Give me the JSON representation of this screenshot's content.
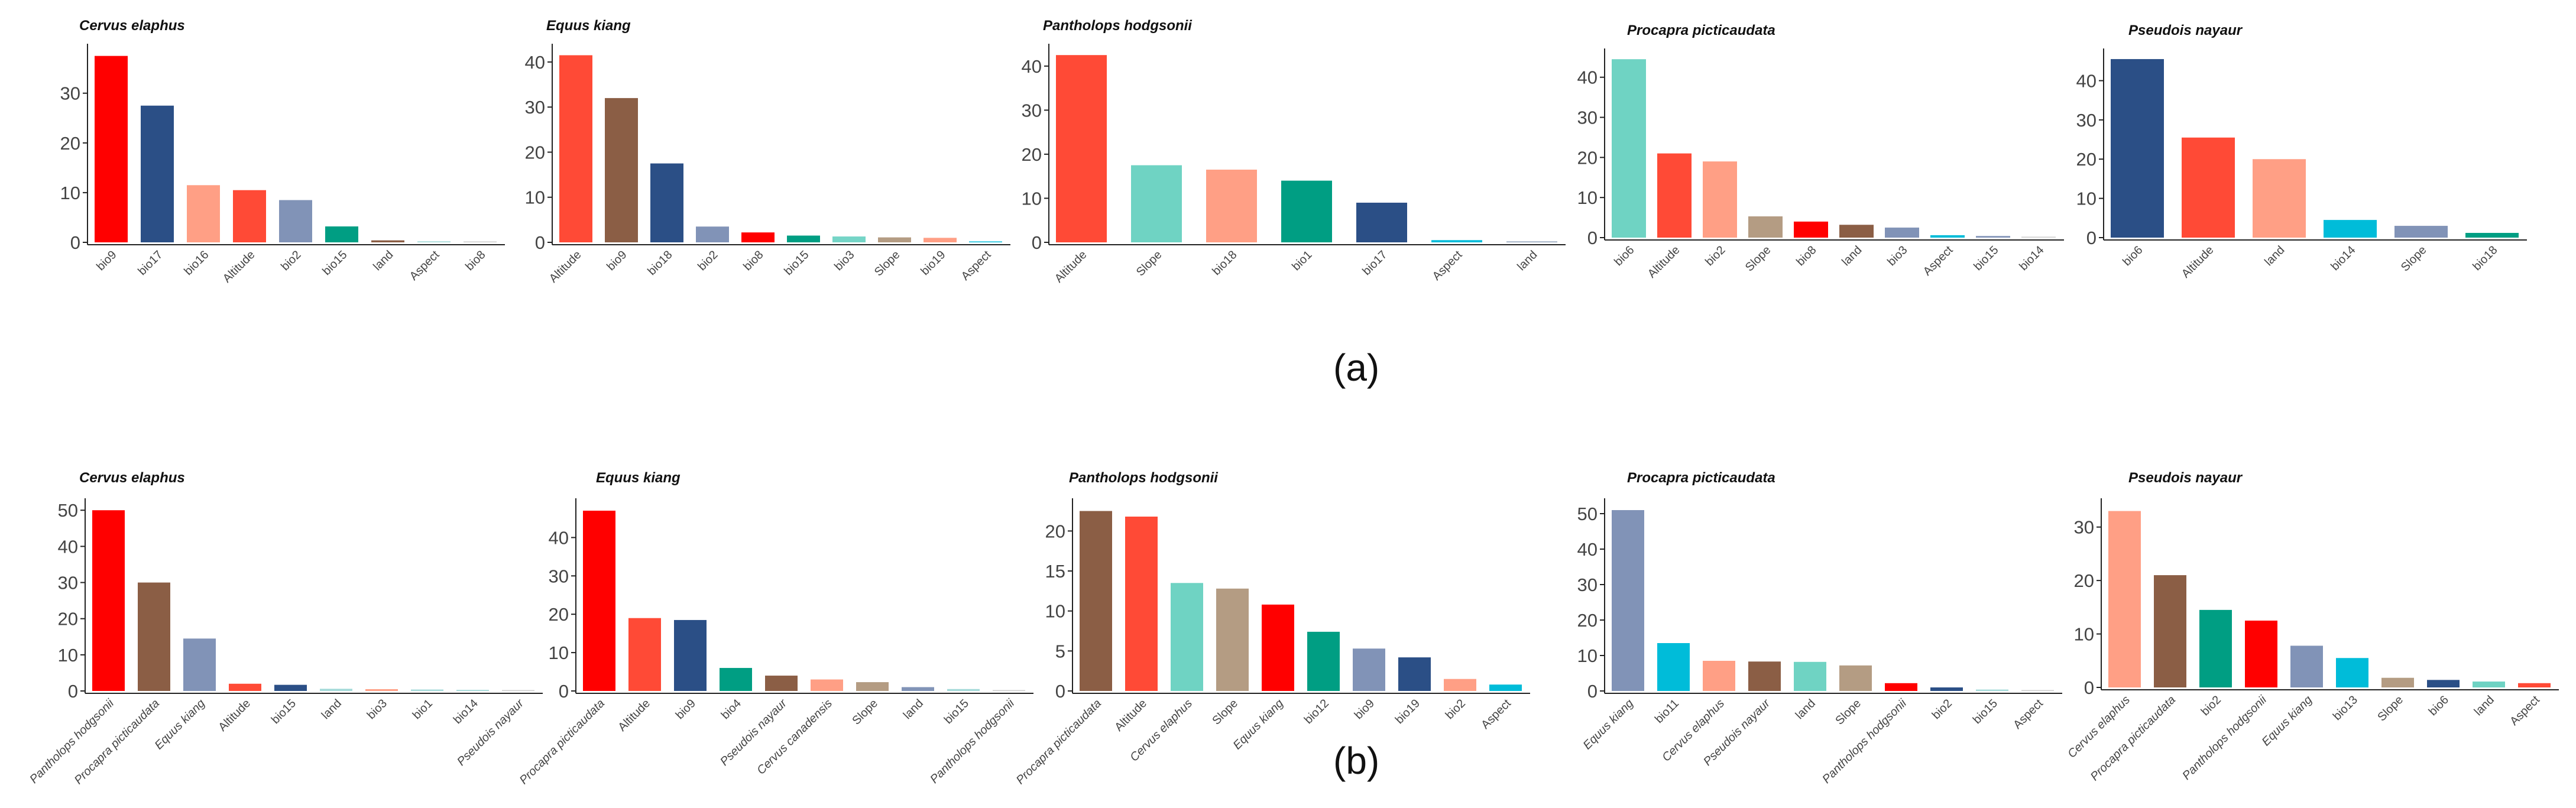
{
  "figure": {
    "captions": [
      "(a)",
      "(b)"
    ]
  },
  "chart_data": [
    {
      "type": "bar",
      "row": "a",
      "title": "Cervus elaphus",
      "categories": [
        "bio9",
        "bio17",
        "bio16",
        "Altitude",
        "bio2",
        "bio15",
        "land",
        "Aspect",
        "bio8"
      ],
      "values": [
        37.5,
        27.5,
        11.5,
        10.5,
        8.5,
        3.2,
        0.4,
        0.2,
        0.1
      ],
      "colors": [
        "#ff0000",
        "#2b4f86",
        "#ff9f85",
        "#ff4a36",
        "#8193b7",
        "#009e83",
        "#8b5e45",
        "#a2d9d8",
        "#cccccc"
      ],
      "ylim": [
        0,
        39
      ],
      "yticks": [
        0,
        10,
        20,
        30
      ]
    },
    {
      "type": "bar",
      "row": "a",
      "title": "Equus kiang",
      "categories": [
        "Altitude",
        "bio9",
        "bio18",
        "bio2",
        "bio8",
        "bio15",
        "bio3",
        "Slope",
        "bio19",
        "Aspect"
      ],
      "values": [
        41.5,
        32,
        17.5,
        3.5,
        2.2,
        1.5,
        1.3,
        1.1,
        1,
        0.1
      ],
      "colors": [
        "#ff4a36",
        "#8b5e45",
        "#2b4f86",
        "#8193b7",
        "#ff0000",
        "#009e83",
        "#75d5c7",
        "#b49c83",
        "#ff9f85",
        "#00bcd9"
      ],
      "ylim": [
        0,
        43
      ],
      "yticks": [
        0,
        10,
        20,
        30,
        40
      ]
    },
    {
      "type": "bar",
      "row": "a",
      "title": "Pantholops hodgsonii",
      "categories": [
        "Altitude",
        "Slope",
        "bio18",
        "bio1",
        "bio17",
        "Aspect",
        "land"
      ],
      "values": [
        42.5,
        17.5,
        16.5,
        14,
        9,
        0.5,
        0.2
      ],
      "colors": [
        "#ff4a36",
        "#6fd3c3",
        "#ff9f85",
        "#009e83",
        "#2b4f86",
        "#00bcd9",
        "#8b9eb7"
      ],
      "ylim": [
        0,
        44
      ],
      "yticks": [
        0,
        10,
        20,
        30,
        40
      ]
    },
    {
      "type": "bar",
      "row": "a",
      "title": "Procapra picticaudata",
      "categories": [
        "bio6",
        "Altitude",
        "bio2",
        "Slope",
        "bio8",
        "land",
        "bio3",
        "Aspect",
        "bio15",
        "bio14"
      ],
      "values": [
        44.5,
        21,
        19,
        5.3,
        4,
        3.2,
        2.5,
        0.6,
        0.4,
        0.1
      ],
      "colors": [
        "#6fd3c3",
        "#ff4a36",
        "#ff9f85",
        "#b49c83",
        "#ff0000",
        "#8b5e45",
        "#8193b7",
        "#00bcd9",
        "#8193b7",
        "#cccccc"
      ],
      "ylim": [
        0,
        46
      ],
      "yticks": [
        0,
        10,
        20,
        30,
        40
      ]
    },
    {
      "type": "bar",
      "row": "a",
      "title": "Pseudois nayaur",
      "categories": [
        "bio6",
        "Altitude",
        "land",
        "bio14",
        "Slope",
        "bio18"
      ],
      "values": [
        45.5,
        25.5,
        20,
        4.5,
        3,
        1.2
      ],
      "colors": [
        "#2b4f86",
        "#ff4a36",
        "#ff9f85",
        "#00bcd9",
        "#8193b7",
        "#009e83"
      ],
      "ylim": [
        0,
        47
      ],
      "yticks": [
        0,
        10,
        20,
        30,
        40
      ]
    },
    {
      "type": "bar",
      "row": "b",
      "title": "Cervus elaphus",
      "categories": [
        "Pantholops hodgsonii",
        "Procapra picticaudata",
        "Equus kiang",
        "Altitude",
        "bio15",
        "land",
        "bio3",
        "bio1",
        "bio14",
        "Pseudois nayaur"
      ],
      "values": [
        50,
        30,
        14.5,
        2,
        1.7,
        0.6,
        0.5,
        0.4,
        0.3,
        0.1
      ],
      "colors": [
        "#ff0000",
        "#8b5e45",
        "#8193b7",
        "#ff4a36",
        "#2b4f86",
        "#a2d9d8",
        "#ff9f85",
        "#a2d9d8",
        "#a2d9d8",
        "#cccccc"
      ],
      "ylim": [
        0,
        52
      ],
      "yticks": [
        0,
        10,
        20,
        30,
        40,
        50
      ]
    },
    {
      "type": "bar",
      "row": "b",
      "title": "Equus kiang",
      "categories": [
        "Procapra picticaudata",
        "Altitude",
        "bio9",
        "bio4",
        "Pseudois nayaur",
        "Cervus canadensis",
        "Slope",
        "land",
        "bio15",
        "Pantholops hodgsonii"
      ],
      "values": [
        47,
        19,
        18.5,
        6,
        4,
        3,
        2.3,
        1,
        0.5,
        0.1
      ],
      "colors": [
        "#ff0000",
        "#ff4a36",
        "#2b4f86",
        "#009e83",
        "#8b5e45",
        "#ff9f85",
        "#b49c83",
        "#8193b7",
        "#a2d9d8",
        "#cccccc"
      ],
      "ylim": [
        0,
        49
      ],
      "yticks": [
        0,
        10,
        20,
        30,
        40
      ]
    },
    {
      "type": "bar",
      "row": "b",
      "title": "Pantholops hodgsonii",
      "categories": [
        "Procapra picticaudata",
        "Altitude",
        "Cervus elaphus",
        "Slope",
        "Equus kiang",
        "bio12",
        "bio9",
        "bio19",
        "bio2",
        "Aspect"
      ],
      "values": [
        22.5,
        21.8,
        13.5,
        12.8,
        10.8,
        7.4,
        5.3,
        4.2,
        1.5,
        0.8
      ],
      "colors": [
        "#8b5e45",
        "#ff4a36",
        "#6fd3c3",
        "#b49c83",
        "#ff0000",
        "#009e83",
        "#8193b7",
        "#2b4f86",
        "#ff9f85",
        "#00bcd9"
      ],
      "ylim": [
        0,
        23.5
      ],
      "yticks": [
        0,
        5,
        10,
        15,
        20
      ]
    },
    {
      "type": "bar",
      "row": "b",
      "title": "Procapra picticaudata",
      "categories": [
        "Equus kiang",
        "bio11",
        "Cervus elaphus",
        "Pseudois nayaur",
        "land",
        "Slope",
        "Pantholops hodgsonii",
        "bio2",
        "bio15",
        "Aspect"
      ],
      "values": [
        51,
        13.5,
        8.5,
        8.3,
        8.2,
        7.2,
        2.2,
        1,
        0.4,
        0.1
      ],
      "colors": [
        "#8193b7",
        "#00bcd9",
        "#ff9f85",
        "#8b5e45",
        "#6fd3c3",
        "#b49c83",
        "#ff0000",
        "#2b4f86",
        "#a2d9d8",
        "#cccccc"
      ],
      "ylim": [
        0,
        53
      ],
      "yticks": [
        0,
        10,
        20,
        30,
        40,
        50
      ]
    },
    {
      "type": "bar",
      "row": "b",
      "title": "Pseudois nayaur",
      "categories": [
        "Cervus elaphus",
        "Procapra picticaudata",
        "bio2",
        "Pantholops hodgsonii",
        "Equus kiang",
        "bio13",
        "Slope",
        "bio6",
        "land",
        "Aspect"
      ],
      "values": [
        33,
        21,
        14.5,
        12.5,
        7.8,
        5.5,
        1.8,
        1.4,
        1.1,
        0.8
      ],
      "colors": [
        "#ff9f85",
        "#8b5e45",
        "#009e83",
        "#ff0000",
        "#8193b7",
        "#00bcd9",
        "#b49c83",
        "#2b4f86",
        "#6fd3c3",
        "#ff4a36"
      ],
      "ylim": [
        0,
        34.5
      ],
      "yticks": [
        0,
        10,
        20,
        30
      ]
    }
  ]
}
